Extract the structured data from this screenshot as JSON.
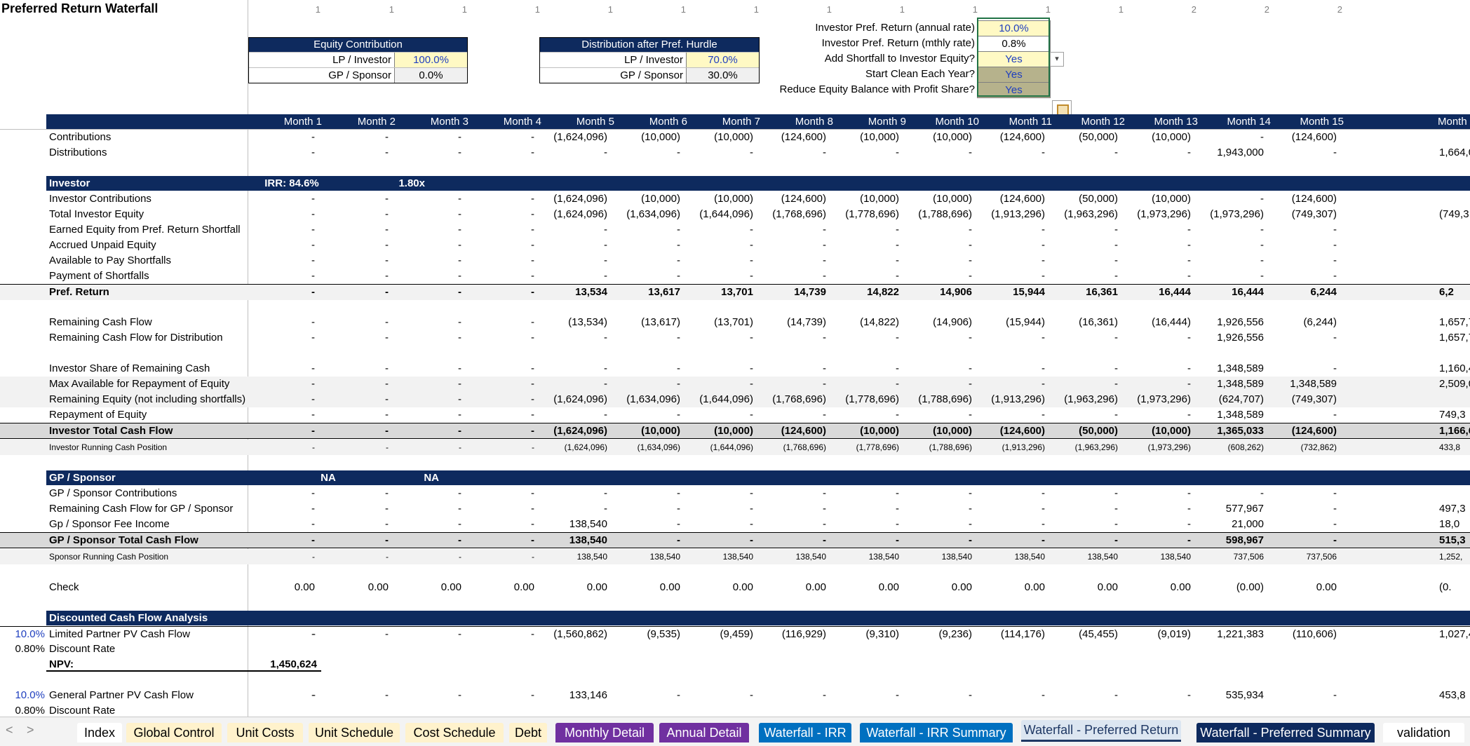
{
  "title": "Preferred Return Waterfall",
  "column_numbers": [
    "1",
    "1",
    "1",
    "1",
    "1",
    "1",
    "1",
    "1",
    "1",
    "1",
    "1",
    "1",
    "2",
    "2",
    "2"
  ],
  "equity_contribution": {
    "header": "Equity Contribution",
    "rows": [
      {
        "label": "LP / Investor",
        "value": "100.0%"
      },
      {
        "label": "GP / Sponsor",
        "value": "0.0%"
      }
    ]
  },
  "distribution_after_hurdle": {
    "header": "Distribution after Pref. Hurdle",
    "rows": [
      {
        "label": "LP / Investor",
        "value": "70.0%"
      },
      {
        "label": "GP / Sponsor",
        "value": "30.0%"
      }
    ]
  },
  "parameters": [
    {
      "label": "Investor Pref. Return (annual rate)",
      "value": "10.0%"
    },
    {
      "label": "Investor Pref. Return (mthly rate)",
      "value": "0.8%"
    },
    {
      "label": "Add Shortfall to Investor Equity?",
      "value": "Yes"
    },
    {
      "label": "Start Clean Each Year?",
      "value": "Yes"
    },
    {
      "label": "Reduce Equity Balance with Profit Share?",
      "value": "Yes"
    }
  ],
  "dropdown_icon": "chevron-down-icon",
  "paste_icon": "paste-options-icon",
  "months": [
    "Month 1",
    "Month 2",
    "Month 3",
    "Month 4",
    "Month 5",
    "Month 6",
    "Month 7",
    "Month 8",
    "Month 9",
    "Month 10",
    "Month 11",
    "Month 12",
    "Month 13",
    "Month 14",
    "Month 15",
    "Month"
  ],
  "rows": [
    {
      "key": "contrib",
      "label": "Contributions",
      "cells": [
        "-",
        "-",
        "-",
        "-",
        "(1,624,096)",
        "(10,000)",
        "(10,000)",
        "(124,600)",
        "(10,000)",
        "(10,000)",
        "(124,600)",
        "(50,000)",
        "(10,000)",
        "-",
        "(124,600)",
        ""
      ]
    },
    {
      "key": "distrib",
      "label": "Distributions",
      "cells": [
        "-",
        "-",
        "-",
        "-",
        "-",
        "-",
        "-",
        "-",
        "-",
        "-",
        "-",
        "-",
        "-",
        "1,943,000",
        "-",
        "1,664,0"
      ]
    },
    {
      "key": "inv_contrib",
      "label": "Investor Contributions",
      "cells": [
        "-",
        "-",
        "-",
        "-",
        "(1,624,096)",
        "(10,000)",
        "(10,000)",
        "(124,600)",
        "(10,000)",
        "(10,000)",
        "(124,600)",
        "(50,000)",
        "(10,000)",
        "-",
        "(124,600)",
        ""
      ]
    },
    {
      "key": "tot_inv_eq",
      "label": "Total Investor Equity",
      "cells": [
        "-",
        "-",
        "-",
        "-",
        "(1,624,096)",
        "(1,634,096)",
        "(1,644,096)",
        "(1,768,696)",
        "(1,778,696)",
        "(1,788,696)",
        "(1,913,296)",
        "(1,963,296)",
        "(1,973,296)",
        "(1,973,296)",
        "(749,307)",
        "(749,3"
      ]
    },
    {
      "key": "earned_eq",
      "label": "Earned Equity from Pref. Return Shortfall",
      "cells": [
        "-",
        "-",
        "-",
        "-",
        "-",
        "-",
        "-",
        "-",
        "-",
        "-",
        "-",
        "-",
        "-",
        "-",
        "-",
        ""
      ]
    },
    {
      "key": "accrued",
      "label": "Accrued Unpaid Equity",
      "cells": [
        "-",
        "-",
        "-",
        "-",
        "-",
        "-",
        "-",
        "-",
        "-",
        "-",
        "-",
        "-",
        "-",
        "-",
        "-",
        ""
      ]
    },
    {
      "key": "avail_short",
      "label": "Available to Pay Shortfalls",
      "cells": [
        "-",
        "-",
        "-",
        "-",
        "-",
        "-",
        "-",
        "-",
        "-",
        "-",
        "-",
        "-",
        "-",
        "-",
        "-",
        ""
      ]
    },
    {
      "key": "pay_short",
      "label": "Payment of Shortfalls",
      "cells": [
        "-",
        "-",
        "-",
        "-",
        "-",
        "-",
        "-",
        "-",
        "-",
        "-",
        "-",
        "-",
        "-",
        "-",
        "-",
        ""
      ]
    },
    {
      "key": "pref_ret",
      "label": "Pref. Return",
      "cells": [
        "-",
        "-",
        "-",
        "-",
        "13,534",
        "13,617",
        "13,701",
        "14,739",
        "14,822",
        "14,906",
        "15,944",
        "16,361",
        "16,444",
        "16,444",
        "6,244",
        "6,2"
      ]
    },
    {
      "key": "rem_cf",
      "label": "Remaining Cash Flow",
      "cells": [
        "-",
        "-",
        "-",
        "-",
        "(13,534)",
        "(13,617)",
        "(13,701)",
        "(14,739)",
        "(14,822)",
        "(14,906)",
        "(15,944)",
        "(16,361)",
        "(16,444)",
        "1,926,556",
        "(6,244)",
        "1,657,7"
      ]
    },
    {
      "key": "rem_cf_dist",
      "label": "Remaining Cash Flow for Distribution",
      "cells": [
        "-",
        "-",
        "-",
        "-",
        "-",
        "-",
        "-",
        "-",
        "-",
        "-",
        "-",
        "-",
        "-",
        "1,926,556",
        "-",
        "1,657,7"
      ]
    },
    {
      "key": "inv_share",
      "label": "Investor Share of Remaining Cash",
      "cells": [
        "-",
        "-",
        "-",
        "-",
        "-",
        "-",
        "-",
        "-",
        "-",
        "-",
        "-",
        "-",
        "-",
        "1,348,589",
        "-",
        "1,160,4"
      ]
    },
    {
      "key": "max_avail",
      "label": "Max Available for Repayment of Equity",
      "cells": [
        "-",
        "-",
        "-",
        "-",
        "-",
        "-",
        "-",
        "-",
        "-",
        "-",
        "-",
        "-",
        "-",
        "1,348,589",
        "1,348,589",
        "2,509,0"
      ]
    },
    {
      "key": "rem_eq",
      "label": "Remaining Equity (not including shortfalls)",
      "cells": [
        "-",
        "-",
        "-",
        "-",
        "(1,624,096)",
        "(1,634,096)",
        "(1,644,096)",
        "(1,768,696)",
        "(1,778,696)",
        "(1,788,696)",
        "(1,913,296)",
        "(1,963,296)",
        "(1,973,296)",
        "(624,707)",
        "(749,307)",
        ""
      ]
    },
    {
      "key": "repay_eq",
      "label": "Repayment of Equity",
      "cells": [
        "-",
        "-",
        "-",
        "-",
        "-",
        "-",
        "-",
        "-",
        "-",
        "-",
        "-",
        "-",
        "-",
        "1,348,589",
        "-",
        "749,3"
      ]
    },
    {
      "key": "inv_total",
      "label": "Investor Total Cash Flow",
      "cells": [
        "-",
        "-",
        "-",
        "-",
        "(1,624,096)",
        "(10,000)",
        "(10,000)",
        "(124,600)",
        "(10,000)",
        "(10,000)",
        "(124,600)",
        "(50,000)",
        "(10,000)",
        "1,365,033",
        "(124,600)",
        "1,166,6"
      ]
    },
    {
      "key": "inv_running",
      "label": "Investor Running Cash Position",
      "cells": [
        "-",
        "-",
        "-",
        "-",
        "(1,624,096)",
        "(1,634,096)",
        "(1,644,096)",
        "(1,768,696)",
        "(1,778,696)",
        "(1,788,696)",
        "(1,913,296)",
        "(1,963,296)",
        "(1,973,296)",
        "(608,262)",
        "(732,862)",
        "433,8"
      ]
    },
    {
      "key": "gp_contrib",
      "label": "GP / Sponsor Contributions",
      "cells": [
        "-",
        "-",
        "-",
        "-",
        "-",
        "-",
        "-",
        "-",
        "-",
        "-",
        "-",
        "-",
        "-",
        "-",
        "-",
        ""
      ]
    },
    {
      "key": "gp_rem",
      "label": "Remaining Cash Flow for GP / Sponsor",
      "cells": [
        "-",
        "-",
        "-",
        "-",
        "-",
        "-",
        "-",
        "-",
        "-",
        "-",
        "-",
        "-",
        "-",
        "577,967",
        "-",
        "497,3"
      ]
    },
    {
      "key": "gp_fee",
      "label": "Gp / Sponsor Fee Income",
      "cells": [
        "-",
        "-",
        "-",
        "-",
        "138,540",
        "-",
        "-",
        "-",
        "-",
        "-",
        "-",
        "-",
        "-",
        "21,000",
        "-",
        "18,0"
      ]
    },
    {
      "key": "gp_total",
      "label": "GP / Sponsor Total Cash Flow",
      "cells": [
        "-",
        "-",
        "-",
        "-",
        "138,540",
        "-",
        "-",
        "-",
        "-",
        "-",
        "-",
        "-",
        "-",
        "598,967",
        "-",
        "515,3"
      ]
    },
    {
      "key": "gp_running",
      "label": "Sponsor Running Cash Position",
      "cells": [
        "-",
        "-",
        "-",
        "-",
        "138,540",
        "138,540",
        "138,540",
        "138,540",
        "138,540",
        "138,540",
        "138,540",
        "138,540",
        "138,540",
        "737,506",
        "737,506",
        "1,252,"
      ]
    },
    {
      "key": "check",
      "label": "Check",
      "cells": [
        "0.00",
        "0.00",
        "0.00",
        "0.00",
        "0.00",
        "0.00",
        "0.00",
        "0.00",
        "0.00",
        "0.00",
        "0.00",
        "0.00",
        "0.00",
        "(0.00)",
        "0.00",
        "(0."
      ]
    },
    {
      "key": "lp_pv",
      "pre": "10.0%",
      "label": "Limited Partner PV Cash Flow",
      "cells": [
        "-",
        "-",
        "-",
        "-",
        "-",
        "(1,560,862)",
        "(9,535)",
        "(9,459)",
        "(116,929)",
        "(9,310)",
        "(9,236)",
        "(114,176)",
        "(45,455)",
        "(9,019)",
        "1,221,383",
        "(110,606)",
        "1,027,4"
      ]
    },
    {
      "key": "lp_dr",
      "pre": "0.80%",
      "label": "Discount Rate",
      "cells": []
    },
    {
      "key": "npv",
      "label": "NPV:",
      "value": "1,450,624"
    },
    {
      "key": "gp_pv",
      "pre": "10.0%",
      "label": "General Partner PV Cash Flow",
      "cells": [
        "-",
        "-",
        "-",
        "-",
        "-",
        "133,146",
        "-",
        "-",
        "-",
        "-",
        "-",
        "-",
        "-",
        "-",
        "535,934",
        "-",
        "453,8"
      ]
    },
    {
      "key": "gp_dr",
      "pre": "0.80%",
      "label": "Discount Rate",
      "cells": []
    }
  ],
  "investor_header": {
    "label": "Investor",
    "irr": "IRR: 84.6%",
    "multiple": "1.80x"
  },
  "gp_header": {
    "label": "GP / Sponsor",
    "irr": "NA",
    "multiple": "NA"
  },
  "dcf_header": {
    "label": "Discounted Cash Flow Analysis"
  },
  "tabs": [
    {
      "label": "Index",
      "bg": "#ffffff",
      "fg": "#000000"
    },
    {
      "label": "Global Control",
      "bg": "#fff2cc",
      "fg": "#000000"
    },
    {
      "label": "Unit Costs",
      "bg": "#fff2cc",
      "fg": "#000000"
    },
    {
      "label": "Unit Schedule",
      "bg": "#fff2cc",
      "fg": "#000000"
    },
    {
      "label": "Cost Schedule",
      "bg": "#fff2cc",
      "fg": "#000000"
    },
    {
      "label": "Debt",
      "bg": "#fff2cc",
      "fg": "#000000"
    },
    {
      "label": "Monthly Detail",
      "bg": "#7030a0",
      "fg": "#ffffff"
    },
    {
      "label": "Annual Detail",
      "bg": "#7030a0",
      "fg": "#ffffff"
    },
    {
      "label": "Waterfall - IRR",
      "bg": "#0070c0",
      "fg": "#ffffff"
    },
    {
      "label": "Waterfall - IRR Summary",
      "bg": "#0070c0",
      "fg": "#ffffff"
    },
    {
      "label": "Waterfall - Preferred Return",
      "bg": "#dce6f1",
      "fg": "#1f3864"
    },
    {
      "label": "Waterfall - Preferred Summary",
      "bg": "#0e2a5e",
      "fg": "#ffffff"
    },
    {
      "label": "validation",
      "bg": "#ffffff",
      "fg": "#000000"
    }
  ],
  "nav": {
    "prev": "<",
    "next": ">"
  }
}
